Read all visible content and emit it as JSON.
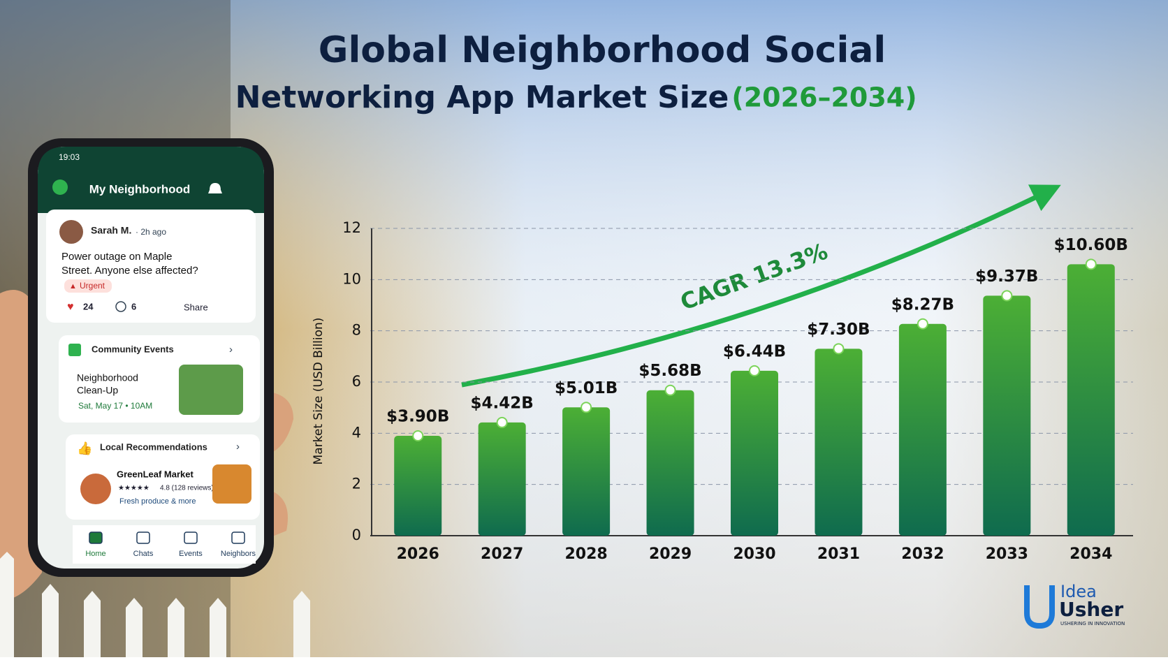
{
  "chart_data": {
    "type": "bar",
    "title": [
      "Global Neighborhood Social",
      "Networking App Market Size",
      "(2026–2034)"
    ],
    "y_label": "Market Size (USD Billion)",
    "annotation": "CAGR 13.3%",
    "categories": [
      "2026",
      "2027",
      "2028",
      "2029",
      "2030",
      "2031",
      "2032",
      "2033",
      "2034"
    ],
    "values": [
      3.9,
      4.42,
      5.01,
      5.68,
      6.44,
      7.3,
      8.27,
      9.37,
      10.6
    ],
    "value_labels": [
      "$3.90B",
      "$4.42B",
      "$5.01B",
      "$5.68B",
      "$6.44B",
      "$7.30B",
      "$8.27B",
      "$9.37B",
      "$10.60B"
    ],
    "color": "#4caf35",
    "ylim": [
      0,
      12
    ],
    "yticks": [
      0,
      2,
      4,
      6,
      8,
      10,
      12
    ],
    "grid": true
  },
  "phone": {
    "time": "19:03",
    "header": "My Neighborhood",
    "post": {
      "author": "Sarah M.",
      "time": "· 2h ago",
      "text": [
        "Power outage on Maple",
        "Street. Anyone else affected?"
      ],
      "tag": "Urgent",
      "likes": "24",
      "comments": "6",
      "share": "Share"
    },
    "events": {
      "title": "Community Events",
      "name": [
        "Neighborhood",
        "Clean-Up"
      ],
      "date": "Sat, May 17 • 10AM"
    },
    "recommendations": {
      "title": "Local Recommendations",
      "name": "GreenLeaf Market",
      "rating": "4.8 (128 reviews)",
      "desc": "Fresh produce & more"
    },
    "nav": [
      "Home",
      "Chats",
      "Events",
      "Neighbors"
    ]
  },
  "logo": {
    "line1": "Idea",
    "line2": "Usher",
    "tagline": "USHERING IN INNOVATION"
  }
}
